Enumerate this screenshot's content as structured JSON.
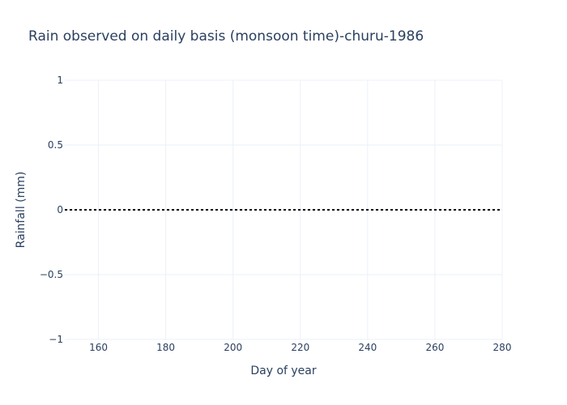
{
  "chart_data": {
    "type": "line",
    "title": "Rain observed on daily basis (monsoon time)-churu-1986",
    "xlabel": "Day of year",
    "ylabel": "Rainfall (mm)",
    "xlim": [
      150,
      280
    ],
    "ylim": [
      -1,
      1
    ],
    "xticks": [
      160,
      180,
      200,
      220,
      240,
      260,
      280
    ],
    "xtick_labels": [
      "160",
      "180",
      "200",
      "220",
      "240",
      "260",
      "280"
    ],
    "yticks": [
      1,
      0.5,
      0,
      -0.5,
      -1
    ],
    "ytick_labels": [
      "1",
      "0.5",
      "0",
      "−0.5",
      "−1"
    ],
    "grid": true,
    "legend": "none",
    "series": [
      {
        "style": "dotted",
        "color": "#000000",
        "x": [
          150,
          160,
          170,
          180,
          190,
          200,
          210,
          220,
          230,
          240,
          250,
          260,
          270,
          280
        ],
        "y": [
          0,
          0,
          0,
          0,
          0,
          0,
          0,
          0,
          0,
          0,
          0,
          0,
          0,
          0
        ]
      }
    ]
  }
}
